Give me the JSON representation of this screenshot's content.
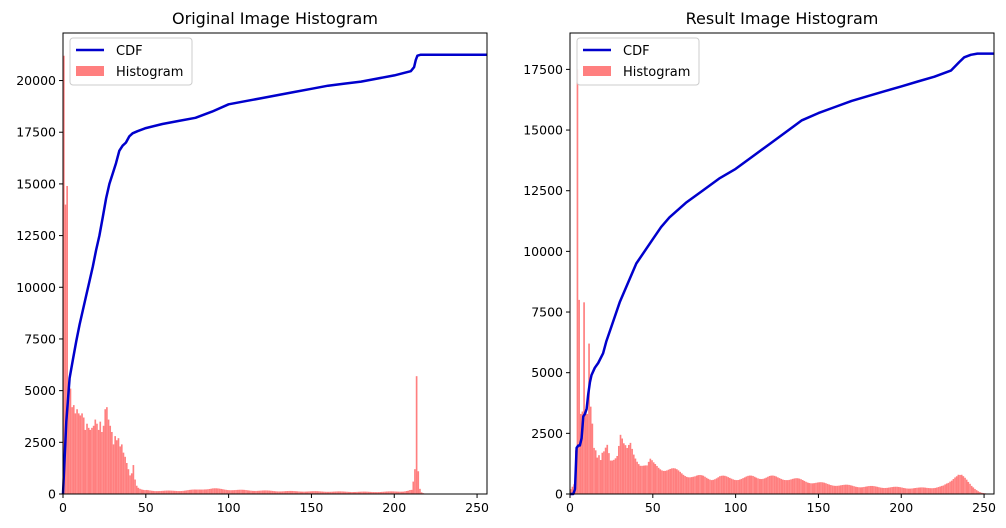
{
  "chart_data": [
    {
      "type": "bar",
      "title": "Original Image Histogram",
      "xlabel": "",
      "ylabel": "",
      "xlim": [
        0,
        256
      ],
      "ylim": [
        0,
        22300
      ],
      "xticks": [
        0,
        50,
        100,
        150,
        200,
        250
      ],
      "yticks": [
        0,
        2500,
        5000,
        7500,
        10000,
        12500,
        15000,
        17500,
        20000
      ],
      "grid": false,
      "legend": {
        "location": "upper left",
        "entries": [
          "CDF",
          "Histogram"
        ]
      },
      "colors": {
        "cdf": "#0000cc",
        "histogram": "#ff7f7f"
      },
      "series": [
        {
          "name": "CDF",
          "type": "line",
          "points": [
            [
              0,
              0
            ],
            [
              2,
              3500
            ],
            [
              4,
              5600
            ],
            [
              6,
              6500
            ],
            [
              8,
              7400
            ],
            [
              10,
              8200
            ],
            [
              12,
              8900
            ],
            [
              14,
              9600
            ],
            [
              16,
              10300
            ],
            [
              18,
              11000
            ],
            [
              20,
              11800
            ],
            [
              22,
              12500
            ],
            [
              24,
              13400
            ],
            [
              26,
              14300
            ],
            [
              28,
              15000
            ],
            [
              30,
              15500
            ],
            [
              32,
              16000
            ],
            [
              34,
              16600
            ],
            [
              36,
              16850
            ],
            [
              38,
              17000
            ],
            [
              40,
              17300
            ],
            [
              42,
              17450
            ],
            [
              45,
              17550
            ],
            [
              50,
              17700
            ],
            [
              60,
              17900
            ],
            [
              70,
              18050
            ],
            [
              80,
              18200
            ],
            [
              90,
              18500
            ],
            [
              100,
              18850
            ],
            [
              110,
              19000
            ],
            [
              120,
              19150
            ],
            [
              130,
              19300
            ],
            [
              140,
              19450
            ],
            [
              150,
              19600
            ],
            [
              160,
              19750
            ],
            [
              170,
              19850
            ],
            [
              180,
              19950
            ],
            [
              190,
              20100
            ],
            [
              200,
              20250
            ],
            [
              205,
              20350
            ],
            [
              210,
              20450
            ],
            [
              212,
              20650
            ],
            [
              213,
              21000
            ],
            [
              214,
              21200
            ],
            [
              216,
              21250
            ],
            [
              225,
              21250
            ],
            [
              256,
              21250
            ]
          ]
        },
        {
          "name": "Histogram",
          "type": "hist",
          "bins": [
            [
              0,
              21200
            ],
            [
              1,
              14000
            ],
            [
              2,
              14900
            ],
            [
              3,
              5000
            ],
            [
              4,
              5100
            ],
            [
              5,
              4200
            ],
            [
              6,
              4300
            ],
            [
              7,
              3900
            ],
            [
              8,
              4100
            ],
            [
              9,
              3900
            ],
            [
              10,
              3800
            ],
            [
              11,
              3900
            ],
            [
              12,
              3700
            ],
            [
              13,
              3100
            ],
            [
              14,
              3400
            ],
            [
              15,
              3200
            ],
            [
              16,
              3100
            ],
            [
              17,
              3200
            ],
            [
              18,
              3300
            ],
            [
              19,
              3600
            ],
            [
              20,
              3400
            ],
            [
              21,
              3100
            ],
            [
              22,
              3500
            ],
            [
              23,
              3000
            ],
            [
              24,
              3300
            ],
            [
              25,
              4100
            ],
            [
              26,
              4200
            ],
            [
              27,
              3600
            ],
            [
              28,
              3300
            ],
            [
              29,
              3000
            ],
            [
              30,
              2400
            ],
            [
              31,
              2800
            ],
            [
              32,
              2600
            ],
            [
              33,
              2700
            ],
            [
              34,
              2300
            ],
            [
              35,
              2400
            ],
            [
              36,
              2000
            ],
            [
              37,
              1800
            ],
            [
              38,
              1500
            ],
            [
              39,
              1200
            ],
            [
              40,
              900
            ],
            [
              41,
              1000
            ],
            [
              42,
              1400
            ],
            [
              43,
              700
            ],
            [
              44,
              400
            ],
            [
              45,
              300
            ],
            [
              46,
              250
            ],
            [
              47,
              220
            ],
            [
              48,
              200
            ],
            [
              49,
              190
            ],
            [
              50,
              180
            ],
            [
              55,
              160
            ],
            [
              60,
              150
            ],
            [
              65,
              150
            ],
            [
              70,
              160
            ],
            [
              75,
              180
            ],
            [
              80,
              200
            ],
            [
              85,
              250
            ],
            [
              90,
              260
            ],
            [
              95,
              230
            ],
            [
              100,
              210
            ],
            [
              105,
              190
            ],
            [
              110,
              180
            ],
            [
              115,
              170
            ],
            [
              120,
              160
            ],
            [
              125,
              150
            ],
            [
              130,
              140
            ],
            [
              135,
              135
            ],
            [
              140,
              130
            ],
            [
              145,
              130
            ],
            [
              150,
              125
            ],
            [
              155,
              120
            ],
            [
              160,
              120
            ],
            [
              165,
              115
            ],
            [
              170,
              110
            ],
            [
              175,
              110
            ],
            [
              180,
              105
            ],
            [
              185,
              100
            ],
            [
              190,
              105
            ],
            [
              195,
              110
            ],
            [
              200,
              120
            ],
            [
              205,
              130
            ],
            [
              208,
              160
            ],
            [
              210,
              200
            ],
            [
              211,
              600
            ],
            [
              212,
              1200
            ],
            [
              213,
              5700
            ],
            [
              214,
              1100
            ],
            [
              215,
              250
            ],
            [
              216,
              80
            ],
            [
              217,
              40
            ],
            [
              218,
              10
            ]
          ]
        }
      ]
    },
    {
      "type": "bar",
      "title": "Result Image Histogram",
      "xlabel": "",
      "ylabel": "",
      "xlim": [
        0,
        256
      ],
      "ylim": [
        0,
        19000
      ],
      "xticks": [
        0,
        50,
        100,
        150,
        200,
        250
      ],
      "yticks": [
        0,
        2500,
        5000,
        7500,
        10000,
        12500,
        15000,
        17500
      ],
      "grid": false,
      "legend": {
        "location": "upper left",
        "entries": [
          "CDF",
          "Histogram"
        ]
      },
      "colors": {
        "cdf": "#0000cc",
        "histogram": "#ff7f7f"
      },
      "series": [
        {
          "name": "CDF",
          "type": "line",
          "points": [
            [
              0,
              0
            ],
            [
              2,
              0
            ],
            [
              3,
              200
            ],
            [
              4,
              1900
            ],
            [
              5,
              2000
            ],
            [
              6,
              2000
            ],
            [
              7,
              2300
            ],
            [
              8,
              3200
            ],
            [
              9,
              3300
            ],
            [
              10,
              3500
            ],
            [
              11,
              4100
            ],
            [
              12,
              4600
            ],
            [
              13,
              4900
            ],
            [
              15,
              5200
            ],
            [
              17,
              5400
            ],
            [
              20,
              5800
            ],
            [
              22,
              6300
            ],
            [
              25,
              6900
            ],
            [
              30,
              7900
            ],
            [
              35,
              8700
            ],
            [
              40,
              9500
            ],
            [
              50,
              10500
            ],
            [
              55,
              11000
            ],
            [
              60,
              11400
            ],
            [
              70,
              12000
            ],
            [
              80,
              12500
            ],
            [
              90,
              13000
            ],
            [
              100,
              13400
            ],
            [
              110,
              13900
            ],
            [
              120,
              14400
            ],
            [
              130,
              14900
            ],
            [
              140,
              15400
            ],
            [
              150,
              15700
            ],
            [
              160,
              15950
            ],
            [
              170,
              16200
            ],
            [
              180,
              16400
            ],
            [
              190,
              16600
            ],
            [
              200,
              16800
            ],
            [
              210,
              17000
            ],
            [
              220,
              17200
            ],
            [
              230,
              17450
            ],
            [
              235,
              17800
            ],
            [
              238,
              18000
            ],
            [
              242,
              18100
            ],
            [
              246,
              18150
            ],
            [
              256,
              18150
            ]
          ]
        },
        {
          "name": "Histogram",
          "type": "hist",
          "bins": [
            [
              0,
              200
            ],
            [
              1,
              300
            ],
            [
              2,
              400
            ],
            [
              3,
              1800
            ],
            [
              4,
              17500
            ],
            [
              5,
              8000
            ],
            [
              6,
              3300
            ],
            [
              7,
              3400
            ],
            [
              8,
              7900
            ],
            [
              9,
              3500
            ],
            [
              10,
              3300
            ],
            [
              11,
              6200
            ],
            [
              12,
              3600
            ],
            [
              13,
              2900
            ],
            [
              14,
              1900
            ],
            [
              15,
              1800
            ],
            [
              16,
              1500
            ],
            [
              17,
              1600
            ],
            [
              18,
              1400
            ],
            [
              19,
              1700
            ],
            [
              20,
              1600
            ],
            [
              22,
              2000
            ],
            [
              24,
              1500
            ],
            [
              26,
              1600
            ],
            [
              28,
              1700
            ],
            [
              30,
              2400
            ],
            [
              32,
              1900
            ],
            [
              34,
              1700
            ],
            [
              36,
              2000
            ],
            [
              38,
              1700
            ],
            [
              40,
              1500
            ],
            [
              42,
              1300
            ],
            [
              44,
              1200
            ],
            [
              46,
              1100
            ],
            [
              48,
              1300
            ],
            [
              50,
              1200
            ],
            [
              55,
              1100
            ],
            [
              60,
              1000
            ],
            [
              65,
              900
            ],
            [
              70,
              800
            ],
            [
              75,
              700
            ],
            [
              80,
              700
            ],
            [
              85,
              650
            ],
            [
              90,
              700
            ],
            [
              95,
              650
            ],
            [
              100,
              650
            ],
            [
              105,
              650
            ],
            [
              110,
              700
            ],
            [
              115,
              700
            ],
            [
              120,
              700
            ],
            [
              125,
              650
            ],
            [
              130,
              650
            ],
            [
              135,
              600
            ],
            [
              140,
              550
            ],
            [
              145,
              500
            ],
            [
              150,
              450
            ],
            [
              155,
              400
            ],
            [
              160,
              380
            ],
            [
              165,
              350
            ],
            [
              170,
              330
            ],
            [
              175,
              310
            ],
            [
              180,
              300
            ],
            [
              185,
              290
            ],
            [
              190,
              280
            ],
            [
              195,
              270
            ],
            [
              200,
              260
            ],
            [
              205,
              250
            ],
            [
              210,
              240
            ],
            [
              215,
              250
            ],
            [
              220,
              280
            ],
            [
              225,
              320
            ],
            [
              228,
              420
            ],
            [
              230,
              550
            ],
            [
              232,
              750
            ],
            [
              234,
              900
            ],
            [
              236,
              850
            ],
            [
              238,
              650
            ],
            [
              240,
              450
            ],
            [
              242,
              300
            ],
            [
              244,
              200
            ],
            [
              246,
              120
            ],
            [
              248,
              60
            ],
            [
              250,
              30
            ]
          ]
        }
      ]
    }
  ]
}
